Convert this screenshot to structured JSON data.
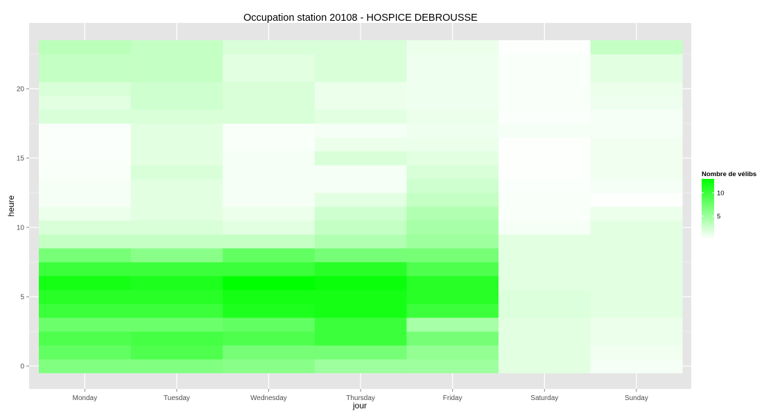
{
  "chart_data": {
    "type": "heatmap",
    "title": "Occupation station 20108 - HOSPICE DEBROUSSE",
    "xlabel": "jour",
    "ylabel": "heure",
    "x_categories": [
      "Monday",
      "Tuesday",
      "Wednesday",
      "Thursday",
      "Friday",
      "Saturday",
      "Sunday"
    ],
    "y_hours": [
      0,
      1,
      2,
      3,
      4,
      5,
      6,
      7,
      8,
      9,
      10,
      11,
      12,
      13,
      14,
      15,
      16,
      17,
      18,
      19,
      20,
      21,
      22,
      23
    ],
    "y_ticks": [
      0,
      5,
      10,
      15,
      20
    ],
    "ylim": [
      -0.5,
      23.5
    ],
    "color_scale": {
      "low": "#ffffff",
      "high": "#00ff00",
      "min": 0,
      "max": 13
    },
    "legend": {
      "title": "Nombre de vélibs",
      "ticks": [
        5,
        10
      ],
      "position": "right"
    },
    "grid": true,
    "values": {
      "Monday": [
        6.5,
        8,
        9,
        7.5,
        10,
        11,
        12,
        10,
        7,
        3,
        2,
        1,
        0.5,
        0.5,
        0.3,
        0.2,
        0.2,
        0.2,
        2,
        1.5,
        2,
        3,
        3,
        3.5
      ],
      "Tuesday": [
        6.5,
        9,
        9.5,
        7.5,
        10,
        11,
        11.5,
        10,
        6,
        3,
        2,
        1.5,
        1.5,
        1.5,
        2,
        1.5,
        1.5,
        1.5,
        2,
        2.5,
        2.5,
        3,
        3,
        3
      ],
      "Wednesday": [
        6,
        7,
        9,
        8,
        11.5,
        12,
        13,
        10,
        8,
        3,
        1.5,
        1,
        0.5,
        0.5,
        0.5,
        0.5,
        0.3,
        0.3,
        2,
        2,
        2,
        1.5,
        1.5,
        2
      ],
      "Thursday": [
        5,
        7,
        10,
        10,
        12,
        12,
        12.5,
        11,
        7,
        4,
        3,
        2.5,
        1.5,
        0.5,
        0.5,
        2,
        1,
        0.5,
        1.5,
        1,
        1,
        2,
        2,
        2
      ],
      "Friday": [
        5,
        5.5,
        7,
        4.5,
        10,
        11,
        11,
        9,
        7,
        5,
        4.5,
        4,
        3,
        2.5,
        2,
        1.5,
        1,
        0.8,
        1,
        0.8,
        0.8,
        0.8,
        0.8,
        1
      ],
      "Saturday": [
        1.5,
        1.5,
        1.5,
        1.5,
        1.8,
        1.8,
        1.5,
        1.5,
        1.5,
        1.5,
        0.5,
        0.3,
        0.3,
        0.2,
        0.1,
        0.1,
        0.1,
        0.5,
        0.2,
        0.3,
        0.3,
        0.3,
        0.3,
        0.1
      ],
      "Sunday": [
        0.5,
        0.7,
        1,
        1,
        1.5,
        1.5,
        1.5,
        1.5,
        1.5,
        1.5,
        1.5,
        1,
        0.1,
        0.5,
        0.7,
        0.7,
        0.7,
        0.5,
        0.5,
        0.8,
        1,
        1.5,
        1.5,
        3
      ]
    }
  }
}
